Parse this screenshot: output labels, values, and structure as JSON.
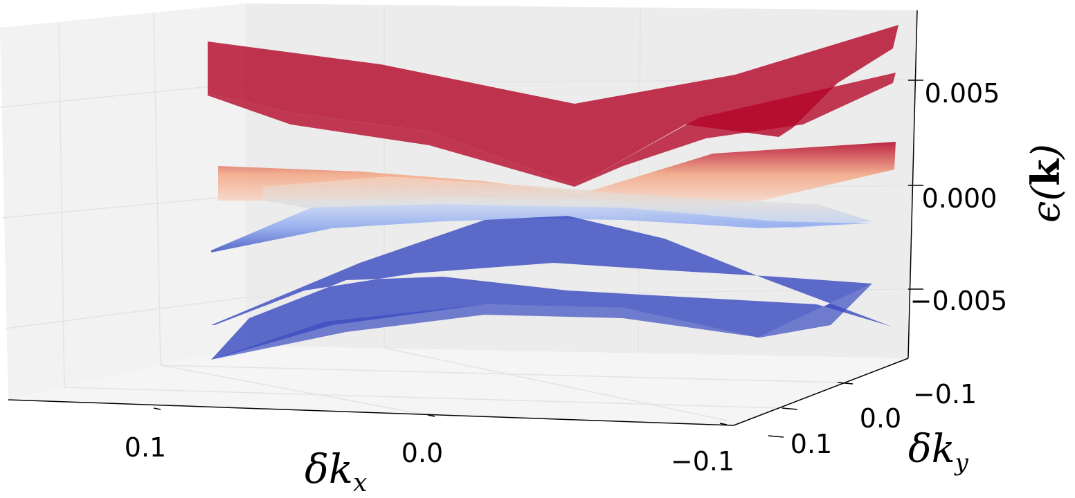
{
  "chart_data": {
    "type": "surface3d",
    "title": "",
    "xlabel": "δk_x",
    "ylabel": "δk_y",
    "zlabel": "ε(k)",
    "x_ticks": [
      "0.1",
      "0.0",
      "−0.1"
    ],
    "y_ticks": [
      "−0.1",
      "0.0",
      "0.1"
    ],
    "z_ticks": [
      "0.005",
      "0.000",
      "−0.005"
    ],
    "x_range": [
      -0.15,
      0.15
    ],
    "y_range": [
      -0.15,
      0.15
    ],
    "z_range": [
      -0.008,
      0.008
    ],
    "grid": true,
    "colormap": "coolwarm",
    "colors": {
      "high": "#b40426",
      "mid": "#dddddd",
      "low": "#3b4cc0",
      "pane": "#f2f2f2",
      "grid": "#e6e6e6"
    },
    "series": [
      {
        "band": 1,
        "energy_at_center": 0.0075,
        "curvature_x": 0.06,
        "curvature_y": 0.02
      },
      {
        "band": 2,
        "energy_at_center": 0.0022,
        "curvature_x": 0.25,
        "curvature_y": 0.08
      },
      {
        "band": 3,
        "energy_at_center": 0.0,
        "curvature_x": 0.05,
        "curvature_y": -0.05
      },
      {
        "band": 4,
        "energy_at_center": -0.0022,
        "curvature_x": -0.25,
        "curvature_y": -0.08
      },
      {
        "band": 5,
        "energy_at_center": -0.0075,
        "curvature_x": -0.06,
        "curvature_y": -0.02
      }
    ]
  }
}
